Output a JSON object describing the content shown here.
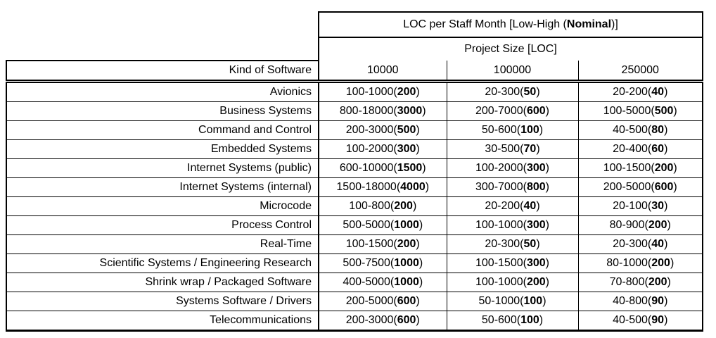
{
  "table": {
    "header": {
      "title_prefix": "LOC per Staff Month [Low-High (",
      "title_bold": "Nominal",
      "title_suffix": ")]",
      "subtitle": "Project Size [LOC]",
      "kind_label": "Kind of Software",
      "sizes": [
        "10000",
        "100000",
        "250000"
      ]
    },
    "rows": [
      {
        "name": "Avionics",
        "cells": [
          {
            "range": "100-1000",
            "nominal": "200"
          },
          {
            "range": "20-300",
            "nominal": "50"
          },
          {
            "range": "20-200",
            "nominal": "40"
          }
        ]
      },
      {
        "name": "Business Systems",
        "cells": [
          {
            "range": "800-18000",
            "nominal": "3000"
          },
          {
            "range": "200-7000",
            "nominal": "600"
          },
          {
            "range": "100-5000",
            "nominal": "500"
          }
        ]
      },
      {
        "name": "Command and Control",
        "cells": [
          {
            "range": "200-3000",
            "nominal": "500"
          },
          {
            "range": "50-600",
            "nominal": "100"
          },
          {
            "range": "40-500",
            "nominal": "80"
          }
        ]
      },
      {
        "name": "Embedded Systems",
        "cells": [
          {
            "range": "100-2000",
            "nominal": "300"
          },
          {
            "range": "30-500",
            "nominal": "70"
          },
          {
            "range": "20-400",
            "nominal": "60"
          }
        ]
      },
      {
        "name": "Internet Systems (public)",
        "cells": [
          {
            "range": "600-10000",
            "nominal": "1500"
          },
          {
            "range": "100-2000",
            "nominal": "300"
          },
          {
            "range": "100-1500",
            "nominal": "200"
          }
        ]
      },
      {
        "name": "Internet Systems (internal)",
        "cells": [
          {
            "range": "1500-18000",
            "nominal": "4000"
          },
          {
            "range": "300-7000",
            "nominal": "800"
          },
          {
            "range": "200-5000",
            "nominal": "600"
          }
        ]
      },
      {
        "name": "Microcode",
        "cells": [
          {
            "range": "100-800",
            "nominal": "200"
          },
          {
            "range": "20-200",
            "nominal": "40"
          },
          {
            "range": "20-100",
            "nominal": "30"
          }
        ]
      },
      {
        "name": "Process Control",
        "cells": [
          {
            "range": "500-5000",
            "nominal": "1000"
          },
          {
            "range": "100-1000",
            "nominal": "300"
          },
          {
            "range": "80-900",
            "nominal": "200"
          }
        ]
      },
      {
        "name": "Real-Time",
        "cells": [
          {
            "range": "100-1500",
            "nominal": "200"
          },
          {
            "range": "20-300",
            "nominal": "50"
          },
          {
            "range": "20-300",
            "nominal": "40"
          }
        ]
      },
      {
        "name": "Scientific Systems / Engineering Research",
        "cells": [
          {
            "range": "500-7500",
            "nominal": "1000"
          },
          {
            "range": "100-1500",
            "nominal": "300"
          },
          {
            "range": "80-1000",
            "nominal": "200"
          }
        ]
      },
      {
        "name": "Shrink wrap / Packaged Software",
        "cells": [
          {
            "range": "400-5000",
            "nominal": "1000"
          },
          {
            "range": "100-1000",
            "nominal": "200"
          },
          {
            "range": "70-800",
            "nominal": "200"
          }
        ]
      },
      {
        "name": "Systems Software / Drivers",
        "cells": [
          {
            "range": "200-5000",
            "nominal": "600"
          },
          {
            "range": "50-1000",
            "nominal": "100"
          },
          {
            "range": "40-800",
            "nominal": "90"
          }
        ]
      },
      {
        "name": "Telecommunications",
        "cells": [
          {
            "range": "200-3000",
            "nominal": "600"
          },
          {
            "range": "50-600",
            "nominal": "100"
          },
          {
            "range": "40-500",
            "nominal": "90"
          }
        ]
      }
    ]
  }
}
